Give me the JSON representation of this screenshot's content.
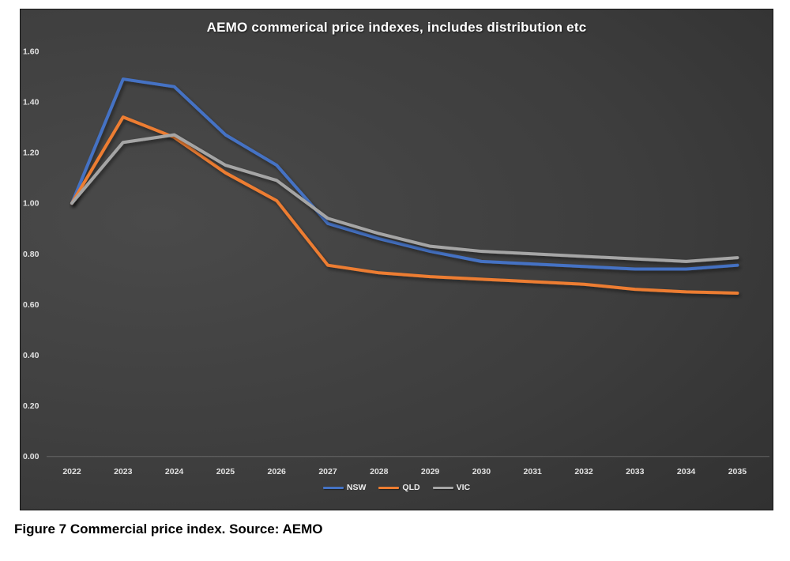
{
  "page": {
    "caption": "Figure 7 Commercial price index. Source: AEMO"
  },
  "chart_data": {
    "type": "line",
    "title": "AEMO commerical price indexes, includes distribution etc",
    "xlabel": "",
    "ylabel": "",
    "categories": [
      "2022",
      "2023",
      "2024",
      "2025",
      "2026",
      "2027",
      "2028",
      "2029",
      "2030",
      "2031",
      "2032",
      "2033",
      "2034",
      "2035"
    ],
    "series": [
      {
        "name": "NSW",
        "color": "#4472C4",
        "values": [
          1.0,
          1.49,
          1.46,
          1.27,
          1.15,
          0.92,
          0.86,
          0.81,
          0.77,
          0.76,
          0.75,
          0.74,
          0.74,
          0.755
        ]
      },
      {
        "name": "QLD",
        "color": "#ED7D31",
        "values": [
          1.0,
          1.34,
          1.26,
          1.12,
          1.01,
          0.755,
          0.725,
          0.71,
          0.7,
          0.69,
          0.68,
          0.66,
          0.65,
          0.645
        ]
      },
      {
        "name": "VIC",
        "color": "#A5A5A5",
        "values": [
          1.0,
          1.24,
          1.27,
          1.15,
          1.09,
          0.94,
          0.88,
          0.83,
          0.81,
          0.8,
          0.79,
          0.78,
          0.77,
          0.785
        ]
      }
    ],
    "y_tick_labels": [
      "0.00",
      "0.20",
      "0.40",
      "0.60",
      "0.80",
      "1.00",
      "1.20",
      "1.40",
      "1.60"
    ],
    "y_tick_values": [
      0.0,
      0.2,
      0.4,
      0.6,
      0.8,
      1.0,
      1.2,
      1.4,
      1.6
    ],
    "ylim": [
      0.0,
      1.6
    ],
    "grid": false,
    "legend_position": "bottom-center",
    "background": "dark-gray-gradient",
    "tick_label_color": "#e2e2e2",
    "axis_line_color": "#9a9a9a"
  }
}
